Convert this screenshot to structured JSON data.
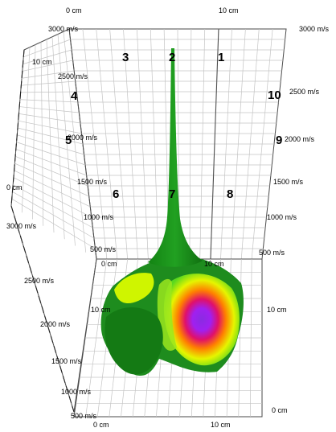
{
  "chart_data": {
    "type": "surface",
    "title": "",
    "back_wall": {
      "x_ticks": [
        "0 cm",
        "10 cm"
      ],
      "y_ticks_left": [
        "3000 m/s",
        "2500 m/s",
        "2000 m/s",
        "1500 m/s",
        "1000 m/s",
        "500 m/s"
      ],
      "y_ticks_right": [
        "3000 m/s",
        "2500 m/s",
        "2000 m/s",
        "1500 m/s",
        "1000 m/s",
        "500 m/s"
      ],
      "bottom_ticks": [
        "0 cm",
        "10 cm"
      ]
    },
    "side_wall": {
      "depth_ticks": [
        "10 cm",
        "0 cm"
      ],
      "y_ticks": [
        "3000 m/s",
        "2500 m/s",
        "2000 m/s",
        "1500 m/s",
        "1000 m/s",
        "500 m/s"
      ]
    },
    "floor": {
      "x_ticks": [
        "0 cm",
        "10 cm"
      ],
      "depth_ticks": [
        "10 cm",
        "0 cm"
      ]
    },
    "sensors": [
      "1",
      "2",
      "3",
      "4",
      "5",
      "6",
      "7",
      "8",
      "9",
      "10"
    ],
    "z_range": [
      500,
      3000
    ],
    "z_unit": "m/s",
    "colors": {
      "surface_low": "#1f8a1f",
      "surface_mid": "#c8f000",
      "surface_high": "#d4000a",
      "surface_peak": "#8a2be2"
    }
  }
}
